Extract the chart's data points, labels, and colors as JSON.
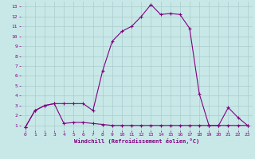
{
  "xlabel": "Windchill (Refroidissement éolien,°C)",
  "line1_x": [
    0,
    1,
    2,
    3,
    4,
    5,
    6,
    7,
    8,
    9,
    10,
    11,
    12,
    13,
    14,
    15,
    16,
    17,
    18,
    19,
    20,
    21,
    22,
    23
  ],
  "line1_y": [
    0.8,
    2.5,
    3.0,
    3.2,
    1.2,
    1.3,
    1.3,
    1.2,
    1.1,
    1.0,
    1.0,
    1.0,
    1.0,
    1.0,
    1.0,
    1.0,
    1.0,
    1.0,
    1.0,
    1.0,
    1.0,
    1.0,
    1.0,
    1.0
  ],
  "line2_x": [
    0,
    1,
    2,
    3,
    4,
    5,
    6,
    7,
    8,
    9,
    10,
    11,
    12,
    13,
    14,
    15,
    16,
    17,
    18,
    19,
    20,
    21,
    22,
    23
  ],
  "line2_y": [
    0.8,
    2.5,
    3.0,
    3.2,
    3.2,
    3.2,
    3.2,
    2.5,
    6.5,
    9.5,
    10.5,
    11.0,
    12.0,
    13.2,
    12.2,
    12.3,
    12.2,
    10.8,
    4.2,
    1.0,
    1.0,
    2.8,
    1.8,
    1.0
  ],
  "line_color": "#800080",
  "bg_color": "#c8e8e8",
  "grid_color": "#aacccc",
  "xlim": [
    -0.5,
    23.5
  ],
  "ylim": [
    0.5,
    13.5
  ],
  "yticks": [
    1,
    2,
    3,
    4,
    5,
    6,
    7,
    8,
    9,
    10,
    11,
    12,
    13
  ],
  "xticks": [
    0,
    1,
    2,
    3,
    4,
    5,
    6,
    7,
    8,
    9,
    10,
    11,
    12,
    13,
    14,
    15,
    16,
    17,
    18,
    19,
    20,
    21,
    22,
    23
  ],
  "marker": "+",
  "markersize": 3,
  "linewidth": 0.8,
  "tick_fontsize": 4.5,
  "xlabel_fontsize": 5.0
}
